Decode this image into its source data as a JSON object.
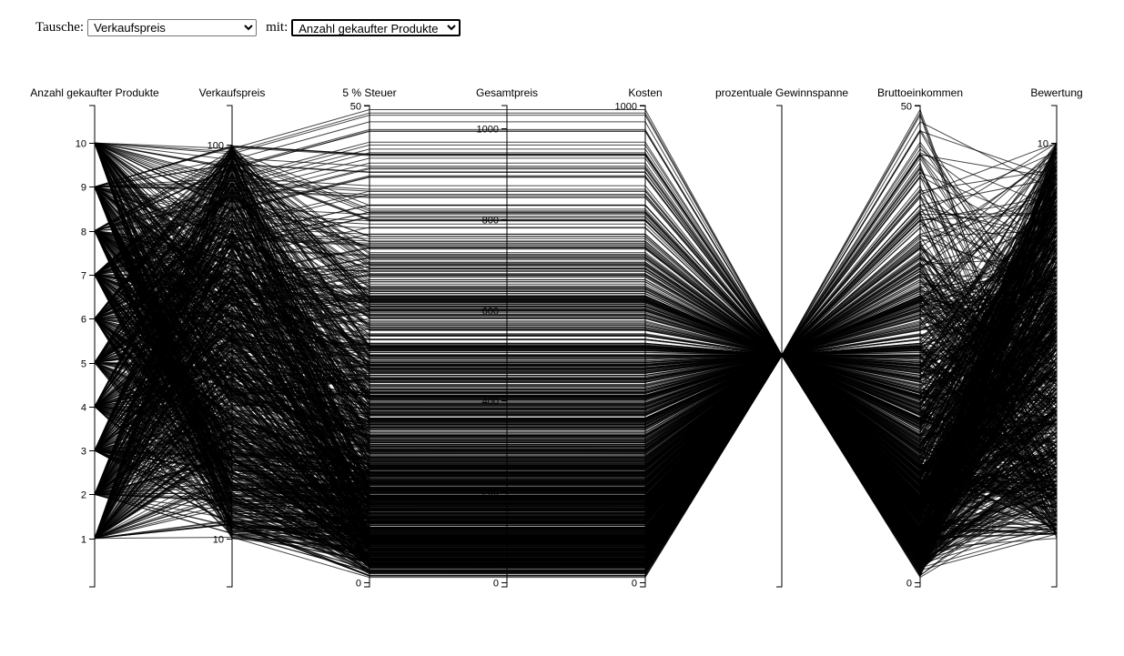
{
  "controls": {
    "swap_label": "Tausche:",
    "swap_selected": "Verkaufspreis",
    "with_label": "mit:",
    "with_selected": "Anzahl gekaufter Produkte"
  },
  "chart_data": {
    "type": "parallel-coordinates",
    "line_color": "#000000",
    "axes": [
      {
        "name": "Anzahl gekaufter Produkte",
        "domain": [
          0,
          10.85
        ],
        "ticks": [
          1,
          2,
          3,
          4,
          5,
          6,
          7,
          8,
          9,
          10
        ]
      },
      {
        "name": "Verkaufspreis",
        "domain": [
          0,
          109
        ],
        "ticks": [
          10,
          100
        ]
      },
      {
        "name": "5 % Steuer",
        "domain": [
          0,
          50
        ],
        "ticks": [
          0,
          50
        ]
      },
      {
        "name": "Gesamtpreis",
        "domain": [
          0,
          1050
        ],
        "ticks": [
          0,
          200,
          400,
          600,
          800,
          1000
        ]
      },
      {
        "name": "Kosten",
        "domain": [
          0,
          1000
        ],
        "ticks": [
          0,
          1000
        ]
      },
      {
        "name": "prozentuale Gewinnspanne",
        "domain": [
          0,
          10
        ],
        "ticks": []
      },
      {
        "name": "Bruttoeinkommen",
        "domain": [
          0,
          50
        ],
        "ticks": [
          0,
          50
        ]
      },
      {
        "name": "Bewertung",
        "domain": [
          0,
          10.85
        ],
        "ticks": [
          10
        ]
      }
    ],
    "records_shown": 1000
  }
}
